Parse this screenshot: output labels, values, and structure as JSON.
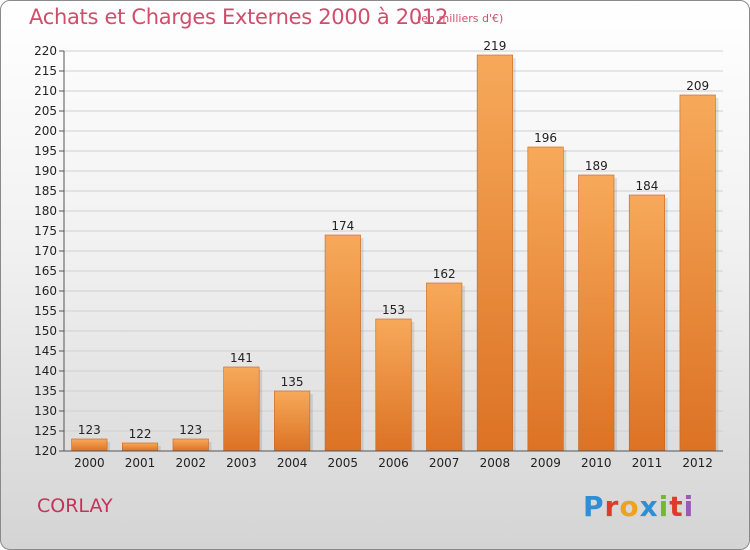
{
  "header": {
    "title": "Achats et Charges Externes 2000 à 2012",
    "unit": "(en milliers d'€)"
  },
  "footer": {
    "city": "CORLAY",
    "logo": [
      "P",
      "r",
      "o",
      "x",
      "i",
      "t",
      "i"
    ],
    "logo_colors": [
      "#2e8fd6",
      "#e23a2a",
      "#f2a11f",
      "#2e8fd6",
      "#76b82a",
      "#e23a2a",
      "#9a59b5"
    ]
  },
  "colors": {
    "bar_top": "#f7a95a",
    "bar_bottom": "#dc7224",
    "title": "#d04e6c"
  },
  "chart_data": {
    "type": "bar",
    "title": "Achats et Charges Externes 2000 à 2012",
    "xlabel": "",
    "ylabel": "",
    "categories": [
      "2000",
      "2001",
      "2002",
      "2003",
      "2004",
      "2005",
      "2006",
      "2007",
      "2008",
      "2009",
      "2010",
      "2011",
      "2012"
    ],
    "values": [
      123,
      122,
      123,
      141,
      135,
      174,
      153,
      162,
      219,
      196,
      189,
      184,
      209
    ],
    "ylim": [
      120,
      220
    ],
    "yticks": [
      120,
      125,
      130,
      135,
      140,
      145,
      150,
      155,
      160,
      165,
      170,
      175,
      180,
      185,
      190,
      195,
      200,
      205,
      210,
      215,
      220
    ],
    "grid": true,
    "legend": "none"
  }
}
